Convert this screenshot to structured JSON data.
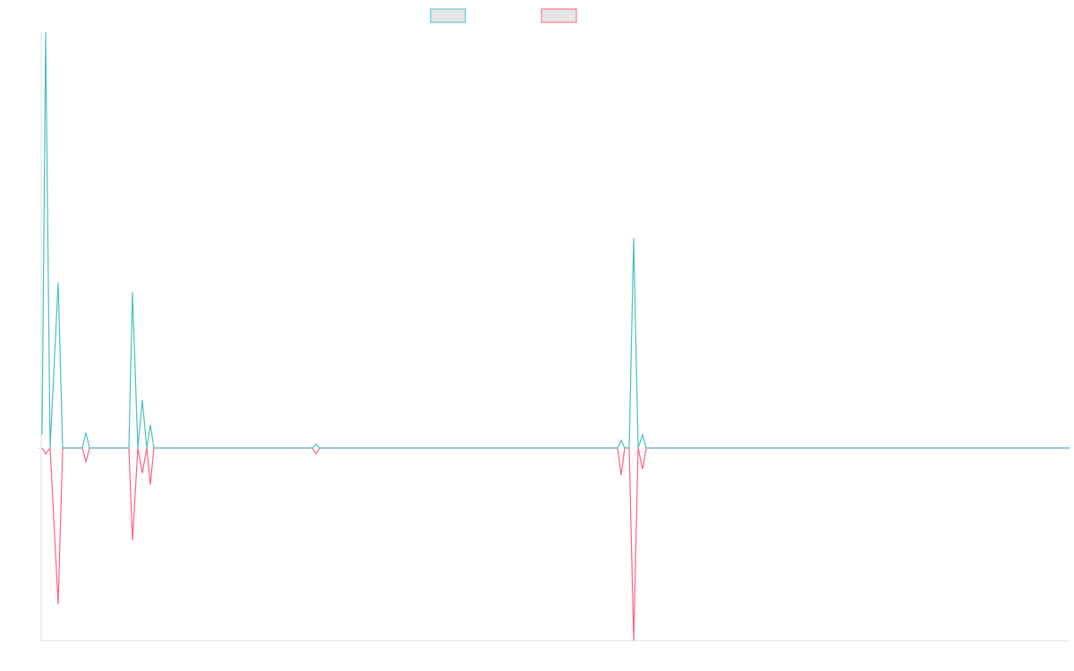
{
  "chart_data": {
    "type": "line",
    "x": [
      1,
      5,
      10,
      19,
      24,
      46,
      50,
      54,
      98,
      102,
      108,
      113,
      118,
      122,
      126,
      303,
      307,
      311,
      644,
      648,
      652,
      657,
      662,
      667,
      672,
      676,
      1149
    ],
    "xlim": [
      0,
      1149
    ],
    "ylim": [
      -1,
      2.16
    ],
    "series": [
      {
        "color": "#4bc0c0",
        "values": [
          0.07,
          2.16,
          0,
          0.86,
          0,
          0,
          0.08,
          0,
          0,
          0.81,
          0,
          0.25,
          0,
          0.12,
          0,
          0,
          0.02,
          0,
          0,
          0.04,
          0,
          0,
          1.09,
          0,
          0.07,
          0,
          0
        ]
      },
      {
        "color": "#ff6384",
        "values": [
          0,
          -0.03,
          0,
          -0.81,
          0,
          0,
          -0.07,
          0,
          0,
          -0.48,
          0,
          -0.13,
          0,
          -0.19,
          0,
          0,
          -0.03,
          0,
          0,
          -0.14,
          0,
          0,
          -1.0,
          0,
          -0.11,
          0,
          0
        ]
      }
    ]
  }
}
